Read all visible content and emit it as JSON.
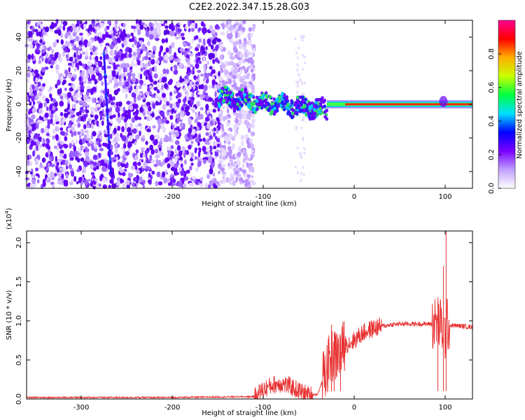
{
  "title": "C2E2.2022.347.15.28.G03",
  "chart_data": [
    {
      "type": "heatmap",
      "xlabel": "Height of straight line (km)",
      "ylabel": "Frequency (Hz)",
      "xlim": [
        -360,
        130
      ],
      "ylim": [
        -50,
        50
      ],
      "xticks": [
        -300,
        -200,
        -100,
        0,
        100
      ],
      "yticks": [
        -40,
        -20,
        0,
        20,
        40
      ],
      "colorbar": {
        "label": "Normalized spectral amplitude",
        "range": [
          0,
          1
        ],
        "ticks": [
          "0.0",
          "0.2",
          "0.4",
          "0.6",
          "0.8"
        ],
        "colors": [
          "#ffffff",
          "#c0a0ff",
          "#7a00ff",
          "#0000ff",
          "#00e0ff",
          "#00ff40",
          "#c8ff00",
          "#ffb000",
          "#ff0000",
          "#ff0090"
        ]
      },
      "features": {
        "noise_region_x": [
          -360,
          -110
        ],
        "signal_line_freq": 0,
        "signal_line_x": [
          -150,
          130
        ],
        "streak_near_x": -275
      }
    },
    {
      "type": "line",
      "xlabel": "Height of straight line (km)",
      "ylabel": "SNR (10 * v/v)",
      "y_multiplier": "(x10",
      "y_multiplier_exp": "4",
      "y_multiplier_close": ")",
      "xlim": [
        -360,
        130
      ],
      "ylim": [
        0,
        2.15
      ],
      "xticks": [
        -300,
        -200,
        -100,
        0,
        100
      ],
      "yticks": [
        "0.0",
        "0.5",
        "1.0",
        "1.5",
        "2.0"
      ],
      "color": "#e83030",
      "series": [
        {
          "x": [
            -360,
            -300,
            -200,
            -110,
            -100,
            -90,
            -80,
            -70,
            -60,
            -50,
            -40,
            -30,
            -25,
            -20,
            -15,
            -10,
            -5,
            0,
            10,
            20,
            30,
            40,
            50,
            60,
            70,
            80,
            90,
            95,
            100,
            102,
            105,
            110,
            120,
            130
          ],
          "y": [
            0.02,
            0.02,
            0.02,
            0.03,
            0.12,
            0.18,
            0.2,
            0.16,
            0.1,
            0.05,
            0.06,
            0.4,
            0.55,
            0.55,
            0.6,
            0.7,
            0.72,
            0.75,
            0.85,
            0.9,
            0.93,
            0.95,
            0.96,
            0.96,
            0.96,
            0.96,
            0.97,
            0.95,
            0.8,
            0.95,
            0.94,
            0.94,
            0.93,
            0.92
          ]
        }
      ],
      "spikes": [
        {
          "x": -25,
          "y": 0.95
        },
        {
          "x": -22,
          "y": 0.85
        },
        {
          "x": -15,
          "y": 0.8
        },
        {
          "x": 92,
          "y": 1.3
        },
        {
          "x": 98,
          "y": 1.7
        },
        {
          "x": 101,
          "y": 2.15
        }
      ]
    }
  ]
}
